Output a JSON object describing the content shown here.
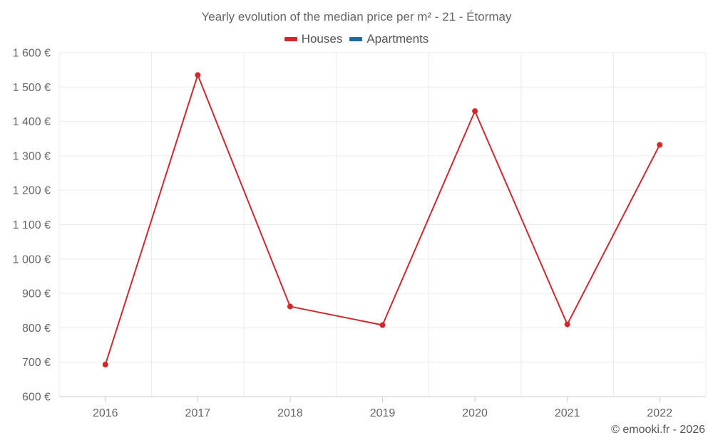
{
  "chart_data": {
    "type": "line",
    "title": "Yearly evolution of the median price per m² - 21 - Étormay",
    "categories": [
      "2016",
      "2017",
      "2018",
      "2019",
      "2020",
      "2021",
      "2022"
    ],
    "series": [
      {
        "name": "Houses",
        "color": "#d0282d",
        "values": [
          693,
          1535,
          862,
          808,
          1430,
          810,
          1332
        ]
      },
      {
        "name": "Apartments",
        "color": "#1f6b9a",
        "values": [
          null,
          null,
          null,
          null,
          null,
          null,
          null
        ]
      }
    ],
    "ylim": [
      600,
      1600
    ],
    "yticks": [
      600,
      700,
      800,
      900,
      1000,
      1100,
      1200,
      1300,
      1400,
      1500,
      1600
    ],
    "ytick_labels": [
      "600 €",
      "700 €",
      "800 €",
      "900 €",
      "1 000 €",
      "1 100 €",
      "1 200 €",
      "1 300 €",
      "1 400 €",
      "1 500 €",
      "1 600 €"
    ],
    "xlabel": "",
    "ylabel": "",
    "grid": true,
    "legend_position": "top-center"
  },
  "credit": "© emooki.fr - 2026"
}
